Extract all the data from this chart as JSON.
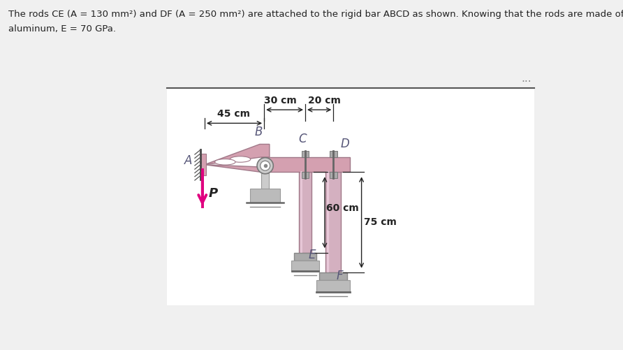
{
  "title_text1": "The rods CE (A = 130 mm²) and DF (A = 250 mm²) are attached to the rigid bar ABCD as shown. Knowing that the rods are made of",
  "title_text2": "aluminum, E = 70 GPa.",
  "bg_color": "#f0f0f0",
  "diagram_bg": "#ffffff",
  "bar_color": "#d4a0b0",
  "bar_edge": "#a07888",
  "rod_color": "#d4b0c0",
  "rod_edge": "#a07888",
  "pin_color": "#999999",
  "support_color": "#bbbbbb",
  "support_edge": "#888888",
  "force_color": "#e0007f",
  "dim_color": "#222222",
  "label_color": "#555577",
  "dim_45": "45 cm",
  "dim_30": "30 cm",
  "dim_20": "20 cm",
  "dim_60": "60 cm",
  "dim_75": "75 cm",
  "label_A": "A",
  "label_B": "B",
  "label_C": "C",
  "label_D": "D",
  "label_E": "E",
  "label_F": "F",
  "label_P": "P",
  "dots": "..."
}
